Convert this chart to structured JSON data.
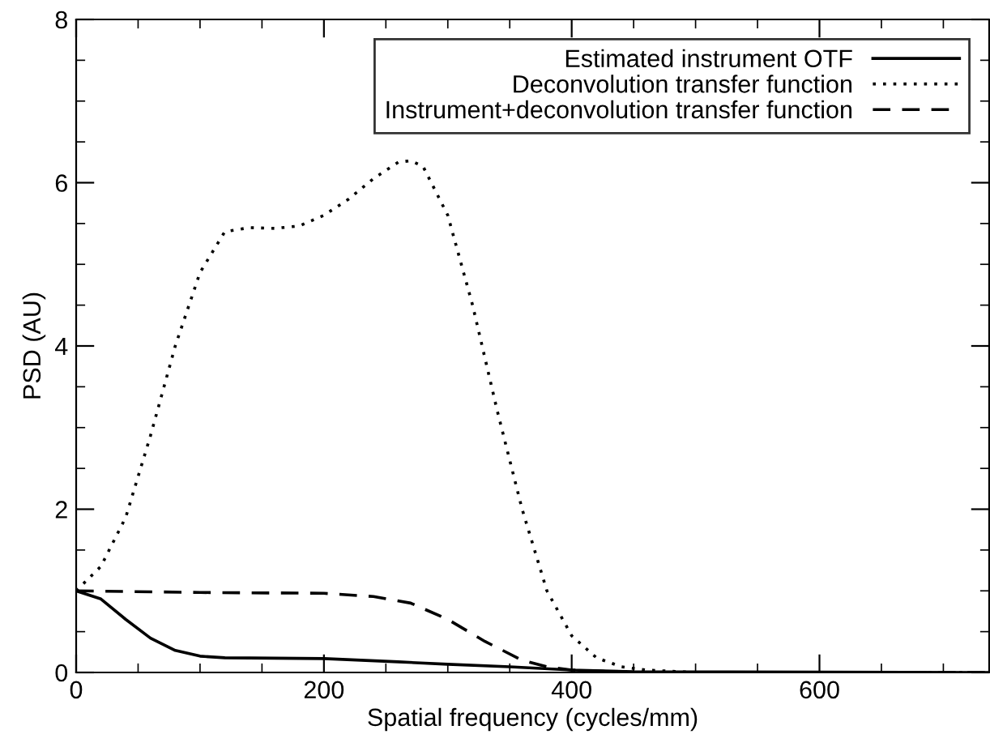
{
  "chart_data": {
    "type": "line",
    "xlabel": "Spatial frequency (cycles/mm)",
    "ylabel": "PSD (AU)",
    "xlim": [
      0,
      737
    ],
    "xticks": [
      0,
      200,
      400,
      600
    ],
    "ylim": [
      0,
      8
    ],
    "yticks": [
      0,
      2,
      4,
      6,
      8
    ],
    "legend": "top right",
    "grid": false,
    "series": [
      {
        "name": "Estimated instrument OTF",
        "color": "#000000",
        "line_style": "solid",
        "x": [
          0,
          20,
          40,
          60,
          80,
          100,
          120,
          200,
          260,
          300,
          350,
          400,
          450,
          737
        ],
        "values": [
          1.0,
          0.9,
          0.65,
          0.42,
          0.27,
          0.2,
          0.18,
          0.17,
          0.13,
          0.1,
          0.07,
          0.03,
          0.01,
          0.0
        ]
      },
      {
        "name": "Deconvolution transfer function",
        "color": "#000000",
        "line_style": "dotted",
        "x": [
          0,
          20,
          40,
          60,
          80,
          100,
          120,
          140,
          160,
          180,
          200,
          220,
          240,
          260,
          270,
          280,
          300,
          320,
          340,
          360,
          380,
          400,
          420,
          440,
          460,
          500,
          737
        ],
        "values": [
          1.0,
          1.3,
          1.9,
          2.9,
          4.0,
          4.9,
          5.4,
          5.45,
          5.44,
          5.47,
          5.6,
          5.8,
          6.05,
          6.25,
          6.27,
          6.2,
          5.6,
          4.5,
          3.2,
          2.0,
          1.0,
          0.45,
          0.18,
          0.07,
          0.03,
          0.0,
          0.0
        ]
      },
      {
        "name": "Instrument+deconvolution transfer function",
        "color": "#000000",
        "line_style": "dashed",
        "x": [
          0,
          100,
          200,
          240,
          270,
          300,
          330,
          360,
          380,
          400,
          450,
          737
        ],
        "values": [
          1.0,
          0.98,
          0.97,
          0.93,
          0.85,
          0.65,
          0.38,
          0.15,
          0.07,
          0.03,
          0.0,
          0.0
        ]
      }
    ]
  }
}
